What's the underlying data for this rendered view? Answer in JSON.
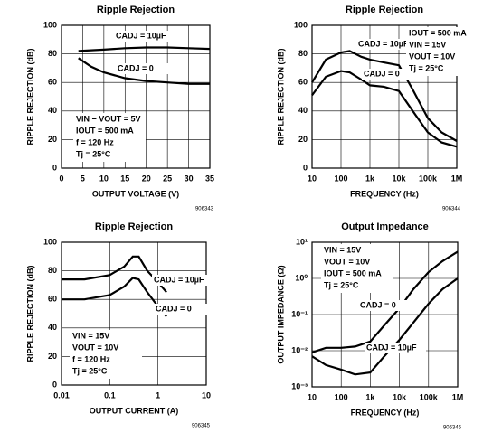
{
  "chart_data": [
    {
      "type": "line",
      "title": "Ripple Rejection",
      "xlabel": "OUTPUT VOLTAGE (V)",
      "ylabel": "RIPPLE REJECTION (dB)",
      "code": "906343",
      "xscale": "linear",
      "yscale": "linear",
      "xlim": [
        0,
        35
      ],
      "ylim": [
        0,
        100
      ],
      "xticks": [
        0,
        5,
        10,
        15,
        20,
        25,
        30,
        35
      ],
      "yticks": [
        0,
        20,
        40,
        60,
        80,
        100
      ],
      "grid": true,
      "annotations": [
        "VIN − VOUT = 5V",
        "IOUT = 500 mA",
        "f = 120 Hz",
        "Tj = 25°C"
      ],
      "series": [
        {
          "name": "CADJ = 10µF",
          "color": "#000000",
          "x": [
            4,
            10,
            15,
            20,
            25,
            30,
            35
          ],
          "values": [
            82,
            83,
            84,
            84.5,
            84.5,
            84,
            83.5
          ]
        },
        {
          "name": "CADJ = 0",
          "color": "#000000",
          "x": [
            4,
            7,
            10,
            15,
            20,
            25,
            30,
            35
          ],
          "values": [
            77,
            71,
            67,
            63,
            61,
            60,
            59,
            59
          ]
        }
      ]
    },
    {
      "type": "line",
      "title": "Ripple Rejection",
      "xlabel": "FREQUENCY (Hz)",
      "ylabel": "RIPPLE REJECTION (dB)",
      "code": "906344",
      "xscale": "log",
      "yscale": "linear",
      "xlim": [
        10,
        1000000
      ],
      "ylim": [
        0,
        100
      ],
      "xticks": [
        10,
        100,
        {
          "value": 1000,
          "label": "1k"
        },
        {
          "value": 10000,
          "label": "10k"
        },
        {
          "value": 100000,
          "label": "100k"
        },
        {
          "value": 1000000,
          "label": "1M"
        }
      ],
      "yticks": [
        0,
        20,
        40,
        60,
        80,
        100
      ],
      "grid": true,
      "annotations": [
        "IOUT = 500 mA",
        "VIN = 15V",
        "VOUT = 10V",
        "Tj = 25°C"
      ],
      "series": [
        {
          "name": "CADJ = 10µF",
          "color": "#000000",
          "x": [
            10,
            30,
            100,
            200,
            500,
            1000,
            3000,
            10000,
            30000,
            100000,
            300000,
            1000000
          ],
          "values": [
            60,
            76,
            81,
            82,
            78,
            76,
            74,
            72,
            55,
            35,
            25,
            19
          ]
        },
        {
          "name": "CADJ = 0",
          "color": "#000000",
          "x": [
            10,
            30,
            100,
            200,
            500,
            1000,
            3000,
            10000,
            30000,
            100000,
            300000,
            1000000
          ],
          "values": [
            51,
            64,
            68,
            67,
            62,
            58,
            57,
            54,
            40,
            25,
            18,
            15
          ]
        }
      ]
    },
    {
      "type": "line",
      "title": "Ripple Rejection",
      "xlabel": "OUTPUT CURRENT (A)",
      "ylabel": "RIPPLE REJECTION (dB)",
      "code": "906345",
      "xscale": "log",
      "yscale": "linear",
      "xlim": [
        0.01,
        10
      ],
      "ylim": [
        0,
        100
      ],
      "xticks": [
        0.01,
        0.1,
        1,
        10
      ],
      "yticks": [
        0,
        20,
        40,
        60,
        80,
        100
      ],
      "grid": true,
      "annotations": [
        "VIN = 15V",
        "VOUT = 10V",
        "f = 120 Hz",
        "Tj = 25°C"
      ],
      "series": [
        {
          "name": "CADJ = 10µF",
          "color": "#000000",
          "x": [
            0.01,
            0.03,
            0.1,
            0.2,
            0.3,
            0.4,
            0.6,
            1,
            1.5
          ],
          "values": [
            74,
            74,
            77,
            83,
            90,
            90,
            80,
            72,
            65
          ]
        },
        {
          "name": "CADJ = 0",
          "color": "#000000",
          "x": [
            0.01,
            0.03,
            0.1,
            0.2,
            0.3,
            0.4,
            0.6,
            1,
            1.5
          ],
          "values": [
            60,
            60,
            63,
            69,
            75,
            74,
            65,
            55,
            48
          ]
        }
      ]
    },
    {
      "type": "line",
      "title": "Output Impedance",
      "xlabel": "FREQUENCY (Hz)",
      "ylabel": "OUTPUT IMPEDANCE (Ω)",
      "code": "906346",
      "xscale": "log",
      "yscale": "log",
      "xlim": [
        10,
        1000000
      ],
      "ylim": [
        0.001,
        10
      ],
      "xticks": [
        10,
        100,
        {
          "value": 1000,
          "label": "1k"
        },
        {
          "value": 10000,
          "label": "10k"
        },
        {
          "value": 100000,
          "label": "100k"
        },
        {
          "value": 1000000,
          "label": "1M"
        }
      ],
      "yticks": [
        {
          "value": 0.001,
          "label": "10⁻³"
        },
        {
          "value": 0.01,
          "label": "10⁻²"
        },
        {
          "value": 0.1,
          "label": "10⁻¹"
        },
        {
          "value": 1,
          "label": "10⁰"
        },
        {
          "value": 10,
          "label": "10¹"
        }
      ],
      "grid": true,
      "annotations": [
        "VIN = 15V",
        "VOUT = 10V",
        "IOUT = 500 mA",
        "Tj = 25°C"
      ],
      "series": [
        {
          "name": "CADJ = 0",
          "color": "#000000",
          "x": [
            10,
            30,
            100,
            300,
            1000,
            3000,
            10000,
            30000,
            100000,
            300000,
            1000000
          ],
          "values": [
            0.009,
            0.012,
            0.012,
            0.013,
            0.018,
            0.05,
            0.15,
            0.5,
            1.5,
            3,
            5.5
          ]
        },
        {
          "name": "CADJ = 10µF",
          "color": "#000000",
          "x": [
            10,
            30,
            100,
            300,
            1000,
            3000,
            10000,
            30000,
            100000,
            300000,
            1000000
          ],
          "values": [
            0.007,
            0.004,
            0.003,
            0.0022,
            0.0025,
            0.007,
            0.02,
            0.06,
            0.2,
            0.5,
            1
          ]
        }
      ]
    }
  ]
}
